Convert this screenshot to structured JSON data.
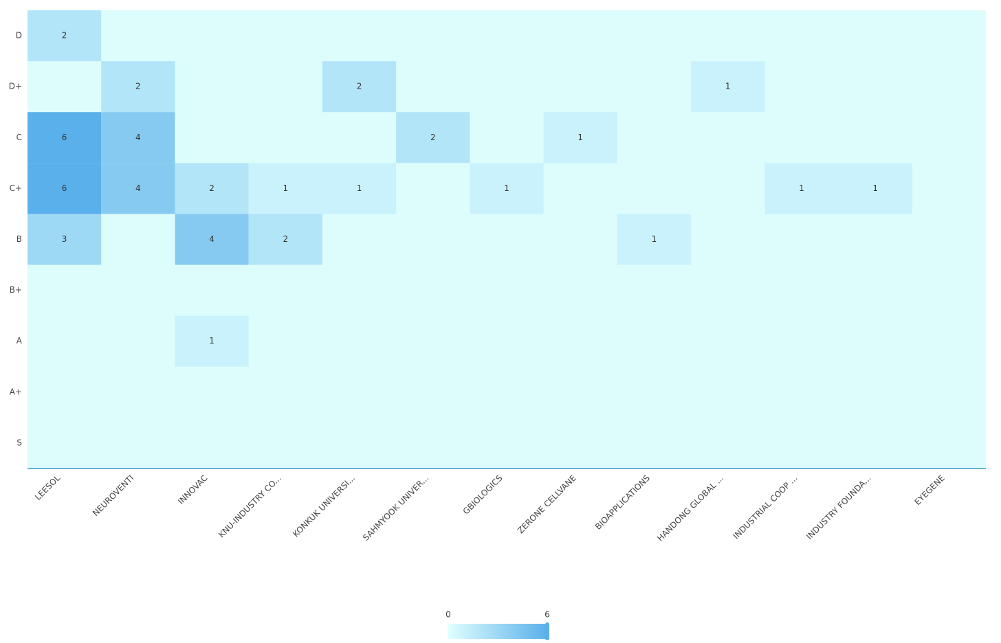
{
  "chart_data": {
    "type": "heatmap",
    "x": [
      "LEESOL",
      "NEUROVENTI",
      "INNOVAC",
      "KNU-INDUSTRY CO...",
      "KONKUK UNIVERSI...",
      "SAHMYOOK UNIVER...",
      "GBIOLOGICS",
      "ZERONE CELLVANE",
      "BIOAPPLICATIONS",
      "HANDONG GLOBAL ...",
      "INDUSTRIAL COOP ...",
      "INDUSTRY FOUNDA...",
      "EYEGENE"
    ],
    "y": [
      "D",
      "D+",
      "C",
      "C+",
      "B",
      "B+",
      "A",
      "A+",
      "S"
    ],
    "z": [
      [
        2,
        null,
        null,
        null,
        null,
        null,
        null,
        null,
        null,
        null,
        null,
        null,
        null
      ],
      [
        null,
        2,
        null,
        null,
        2,
        null,
        null,
        null,
        null,
        1,
        null,
        null,
        null
      ],
      [
        6,
        4,
        null,
        null,
        null,
        2,
        null,
        1,
        null,
        null,
        null,
        null,
        null
      ],
      [
        6,
        4,
        2,
        1,
        1,
        null,
        1,
        null,
        null,
        null,
        1,
        1,
        null
      ],
      [
        3,
        null,
        4,
        2,
        null,
        null,
        null,
        null,
        1,
        null,
        null,
        null,
        null
      ],
      [
        null,
        null,
        null,
        null,
        null,
        null,
        null,
        null,
        null,
        null,
        null,
        null,
        null
      ],
      [
        null,
        null,
        1,
        null,
        null,
        null,
        null,
        null,
        null,
        null,
        null,
        null,
        null
      ],
      [
        null,
        null,
        null,
        null,
        null,
        null,
        null,
        null,
        null,
        null,
        null,
        null,
        null
      ],
      [
        null,
        null,
        null,
        null,
        null,
        null,
        null,
        null,
        null,
        null,
        null,
        null,
        null
      ]
    ],
    "zlim": [
      0,
      6
    ],
    "zticks": [
      0,
      6
    ],
    "colorscale": [
      "#e0ffff",
      "#5ab0ea"
    ]
  }
}
